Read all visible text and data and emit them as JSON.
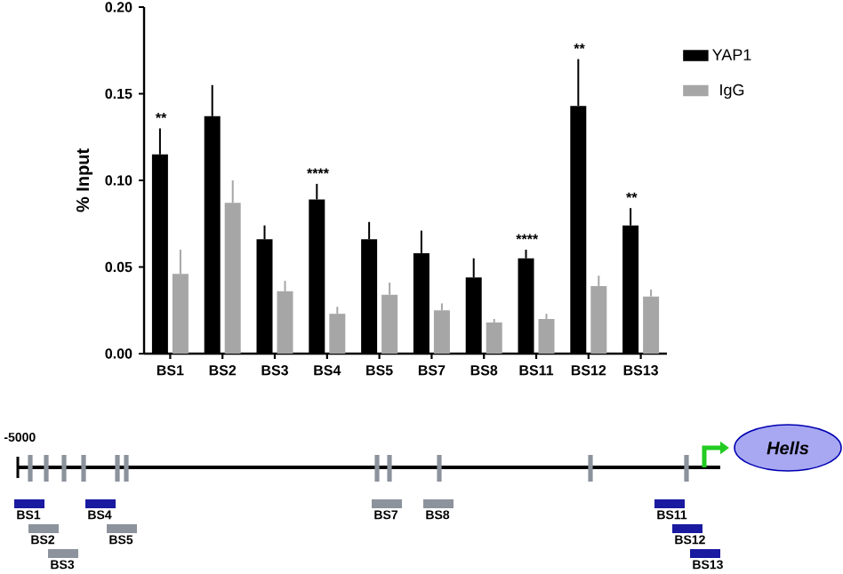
{
  "chart_data": {
    "type": "bar",
    "ylabel": "% Input",
    "categories": [
      "BS1",
      "BS2",
      "BS3",
      "BS4",
      "BS5",
      "BS7",
      "BS8",
      "BS11",
      "BS12",
      "BS13"
    ],
    "series": [
      {
        "name": "YAP1",
        "color": "#000000",
        "values": [
          0.115,
          0.137,
          0.066,
          0.089,
          0.066,
          0.058,
          0.044,
          0.055,
          0.143,
          0.074
        ],
        "errors": [
          [
            0.115,
            0.13
          ],
          [
            0.137,
            0.155
          ],
          [
            0.066,
            0.074
          ],
          [
            0.089,
            0.098
          ],
          [
            0.066,
            0.076
          ],
          [
            0.058,
            0.071
          ],
          [
            0.044,
            0.055
          ],
          [
            0.055,
            0.06
          ],
          [
            0.143,
            0.17
          ],
          [
            0.074,
            0.084
          ]
        ]
      },
      {
        "name": "IgG",
        "color": "#a6a6a6",
        "values": [
          0.046,
          0.087,
          0.036,
          0.023,
          0.034,
          0.025,
          0.018,
          0.02,
          0.039,
          0.033
        ],
        "errors": [
          [
            0.046,
            0.06
          ],
          [
            0.087,
            0.1
          ],
          [
            0.036,
            0.042
          ],
          [
            0.023,
            0.027
          ],
          [
            0.034,
            0.041
          ],
          [
            0.025,
            0.029
          ],
          [
            0.018,
            0.02
          ],
          [
            0.02,
            0.023
          ],
          [
            0.039,
            0.045
          ],
          [
            0.033,
            0.037
          ]
        ]
      }
    ],
    "ylim": [
      0,
      0.2
    ],
    "yticks": [
      {
        "value": 0,
        "label": "0.00"
      },
      {
        "value": 0.05,
        "label": "0.05"
      },
      {
        "value": 0.1,
        "label": "0.10"
      },
      {
        "value": 0.15,
        "label": "0.15"
      },
      {
        "value": 0.2,
        "label": "0.20"
      }
    ],
    "legend": "top right",
    "grid": false,
    "annotations": [
      "**",
      "****",
      "****",
      "**",
      "**",
      "-5000",
      "Hells",
      "BS1",
      "BS2",
      "BS3",
      "BS4",
      "BS5",
      "BS7",
      "BS8",
      "BS11",
      "BS12",
      "BS13"
    ]
  }
}
